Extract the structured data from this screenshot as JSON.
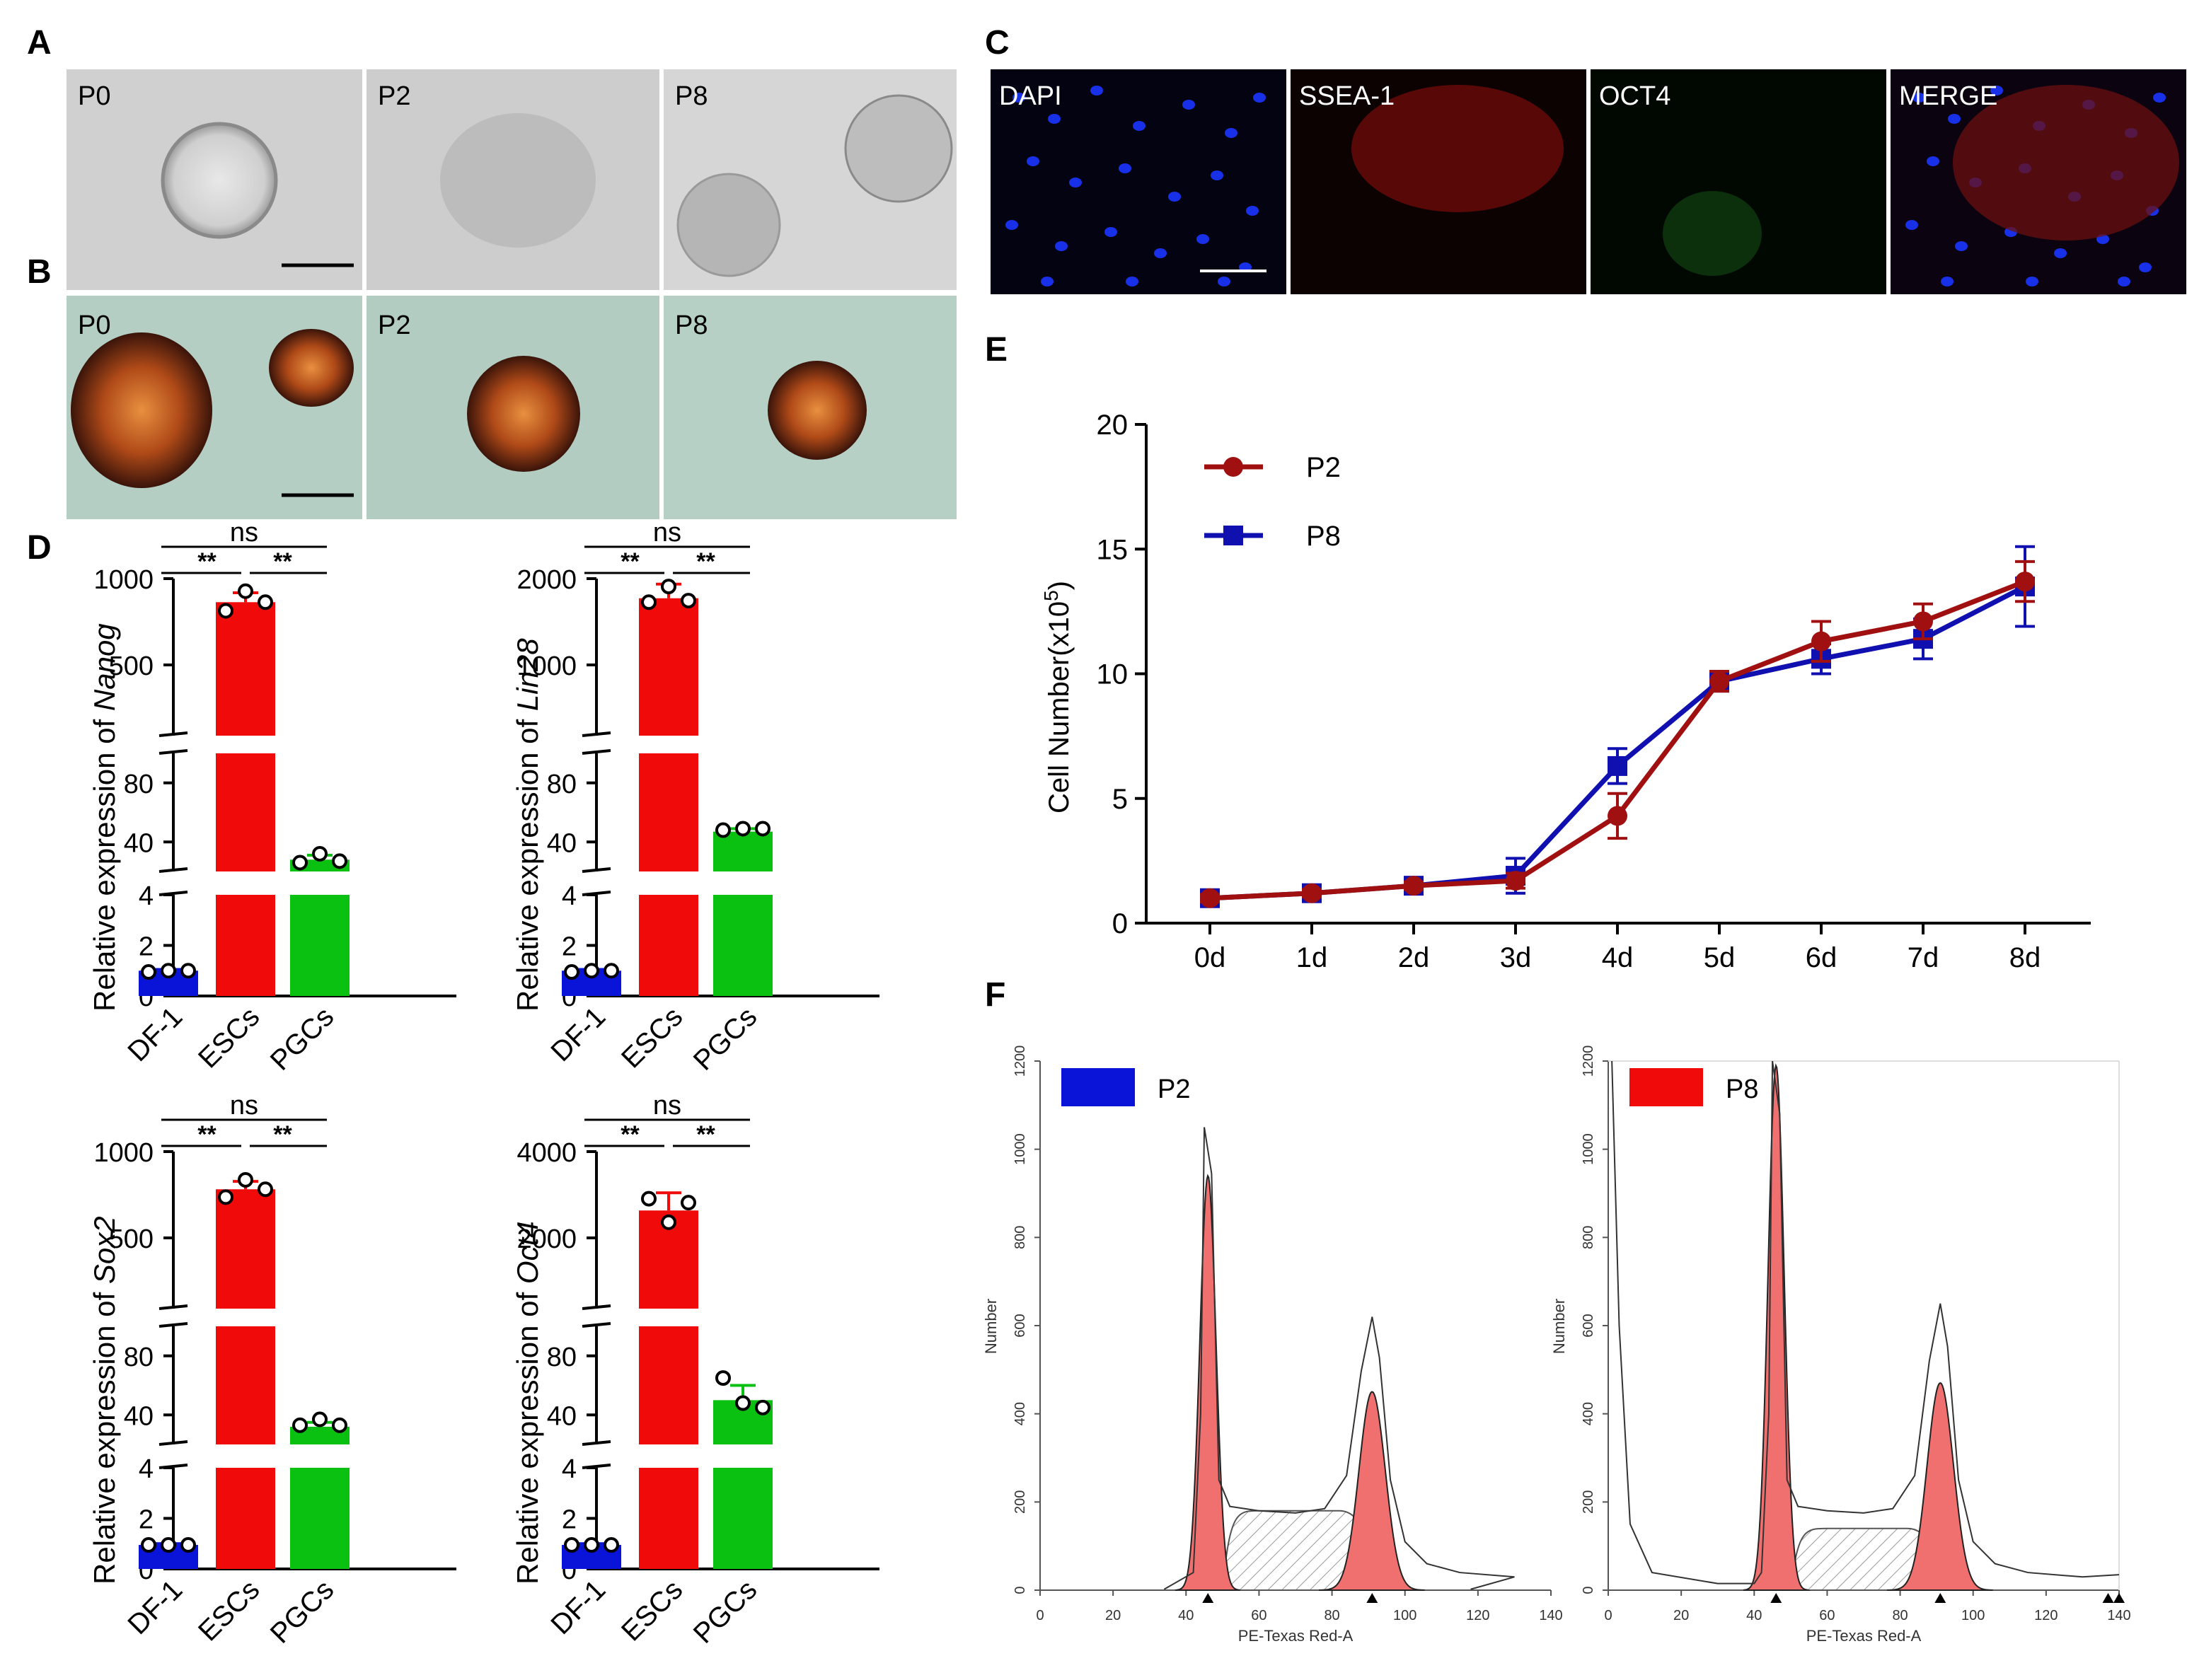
{
  "colors": {
    "blue": "#0a14d8",
    "red": "#f00a0a",
    "green": "#0ac010",
    "darkred": "#a01010",
    "navy": "#1010b0",
    "fillred": "#f07070"
  },
  "panels": {
    "A": {
      "letter": "A",
      "labels": [
        "P0",
        "P2",
        "P8"
      ]
    },
    "B": {
      "letter": "B",
      "labels": [
        "P0",
        "P2",
        "P8"
      ]
    },
    "C": {
      "letter": "C",
      "labels": [
        "DAPI",
        "SSEA-1",
        "OCT4",
        "MERGE"
      ]
    },
    "D": {
      "letter": "D"
    },
    "E": {
      "letter": "E"
    },
    "F": {
      "letter": "F"
    }
  },
  "chart_data": [
    {
      "id": "nanog",
      "type": "bar",
      "ylabel_prefix": "Relative expression of ",
      "gene": "Nanog",
      "categories": [
        "DF-1",
        "ESCs",
        "PGCs"
      ],
      "values": [
        1.0,
        850,
        28
      ],
      "errors": [
        0.05,
        60,
        3
      ],
      "points": [
        [
          0.95,
          1.0,
          1.0
        ],
        [
          795,
          920,
          850
        ],
        [
          26,
          32,
          27
        ]
      ],
      "sig": {
        "left": "**",
        "right": "**",
        "top": "ns"
      },
      "ticks_top": [
        "500",
        "1000"
      ],
      "ticks_mid": [
        "40",
        "80"
      ],
      "ticks_bot": [
        "0",
        "2",
        "4"
      ]
    },
    {
      "id": "lin28",
      "type": "bar",
      "ylabel_prefix": "Relative expression of ",
      "gene": "Lin28",
      "categories": [
        "DF-1",
        "ESCs",
        "PGCs"
      ],
      "values": [
        1.0,
        1750,
        47
      ],
      "errors": [
        0.05,
        180,
        2
      ],
      "points": [
        [
          0.95,
          1.0,
          1.0
        ],
        [
          1700,
          1900,
          1720
        ],
        [
          48,
          49,
          49
        ]
      ],
      "sig": {
        "left": "**",
        "right": "**",
        "top": "ns"
      },
      "ticks_top": [
        "1000",
        "2000"
      ],
      "ticks_mid": [
        "40",
        "80"
      ],
      "ticks_bot": [
        "0",
        "2",
        "4"
      ]
    },
    {
      "id": "sox2",
      "type": "bar",
      "ylabel_prefix": "Relative expression of ",
      "gene": "Sox2",
      "categories": [
        "DF-1",
        "ESCs",
        "PGCs"
      ],
      "values": [
        0.95,
        760,
        32
      ],
      "errors": [
        0.05,
        50,
        3
      ],
      "points": [
        [
          0.95,
          0.95,
          0.95
        ],
        [
          710,
          820,
          760
        ],
        [
          33,
          37,
          33
        ]
      ],
      "sig": {
        "left": "**",
        "right": "**",
        "top": "ns"
      },
      "ticks_top": [
        "500",
        "1000"
      ],
      "ticks_mid": [
        "40",
        "80"
      ],
      "ticks_bot": [
        "0",
        "2",
        "4"
      ]
    },
    {
      "id": "oct4",
      "type": "bar",
      "ylabel_prefix": "Relative expression of ",
      "gene": "Oct4",
      "categories": [
        "DF-1",
        "ESCs",
        "PGCs"
      ],
      "values": [
        0.95,
        2500,
        50
      ],
      "errors": [
        0.05,
        450,
        10
      ],
      "points": [
        [
          0.95,
          0.95,
          0.95
        ],
        [
          2800,
          2200,
          2700
        ],
        [
          65,
          48,
          45
        ]
      ],
      "sig": {
        "left": "**",
        "right": "**",
        "top": "ns"
      },
      "ticks_top": [
        "2000",
        "4000"
      ],
      "ticks_mid": [
        "40",
        "80"
      ],
      "ticks_bot": [
        "0",
        "2",
        "4"
      ]
    },
    {
      "id": "growth",
      "type": "line",
      "ylabel": "Cell Number(x10",
      "ylabel_exp": "5",
      "ylabel_end": ")",
      "categories": [
        "0d",
        "1d",
        "2d",
        "3d",
        "4d",
        "5d",
        "6d",
        "7d",
        "8d"
      ],
      "ylim": [
        0,
        20
      ],
      "yticks": [
        "0",
        "5",
        "10",
        "15",
        "20"
      ],
      "series": [
        {
          "name": "P2",
          "values": [
            1.0,
            1.2,
            1.5,
            1.7,
            4.3,
            9.7,
            11.3,
            12.1,
            13.7
          ],
          "errors": [
            0.15,
            0.15,
            0.15,
            0.3,
            0.9,
            0.4,
            0.8,
            0.7,
            0.8
          ]
        },
        {
          "name": "P8",
          "values": [
            1.0,
            1.2,
            1.5,
            1.9,
            6.3,
            9.7,
            10.6,
            11.4,
            13.5
          ],
          "errors": [
            0.15,
            0.15,
            0.15,
            0.7,
            0.7,
            0.4,
            0.6,
            0.8,
            1.6
          ]
        }
      ]
    },
    {
      "id": "flow_p2",
      "type": "histogram",
      "legend": "P2",
      "xlabel": "PE-Texas Red-A",
      "ylabel": "Number",
      "xticks": [
        "0",
        "20",
        "40",
        "60",
        "80",
        "100",
        "120",
        "140"
      ],
      "yticks": [
        "0",
        "200",
        "400",
        "600",
        "800",
        "1000",
        "1200"
      ],
      "g1_peak": 46,
      "g1_height": 940,
      "g2_peak": 91,
      "g2_height": 450,
      "s_height": 180,
      "outline_g1": 1050,
      "outline_g2": 620
    },
    {
      "id": "flow_p8",
      "type": "histogram",
      "legend": "P8",
      "xlabel": "PE-Texas Red-A",
      "ylabel": "Number",
      "xticks": [
        "0",
        "20",
        "40",
        "60",
        "80",
        "100",
        "120",
        "140"
      ],
      "yticks": [
        "0",
        "200",
        "400",
        "600",
        "800",
        "1000",
        "1200"
      ],
      "g1_peak": 46,
      "g1_height": 1190,
      "g2_peak": 91,
      "g2_height": 470,
      "s_height": 140,
      "outline_g1": 1200,
      "outline_g2": 650
    }
  ]
}
